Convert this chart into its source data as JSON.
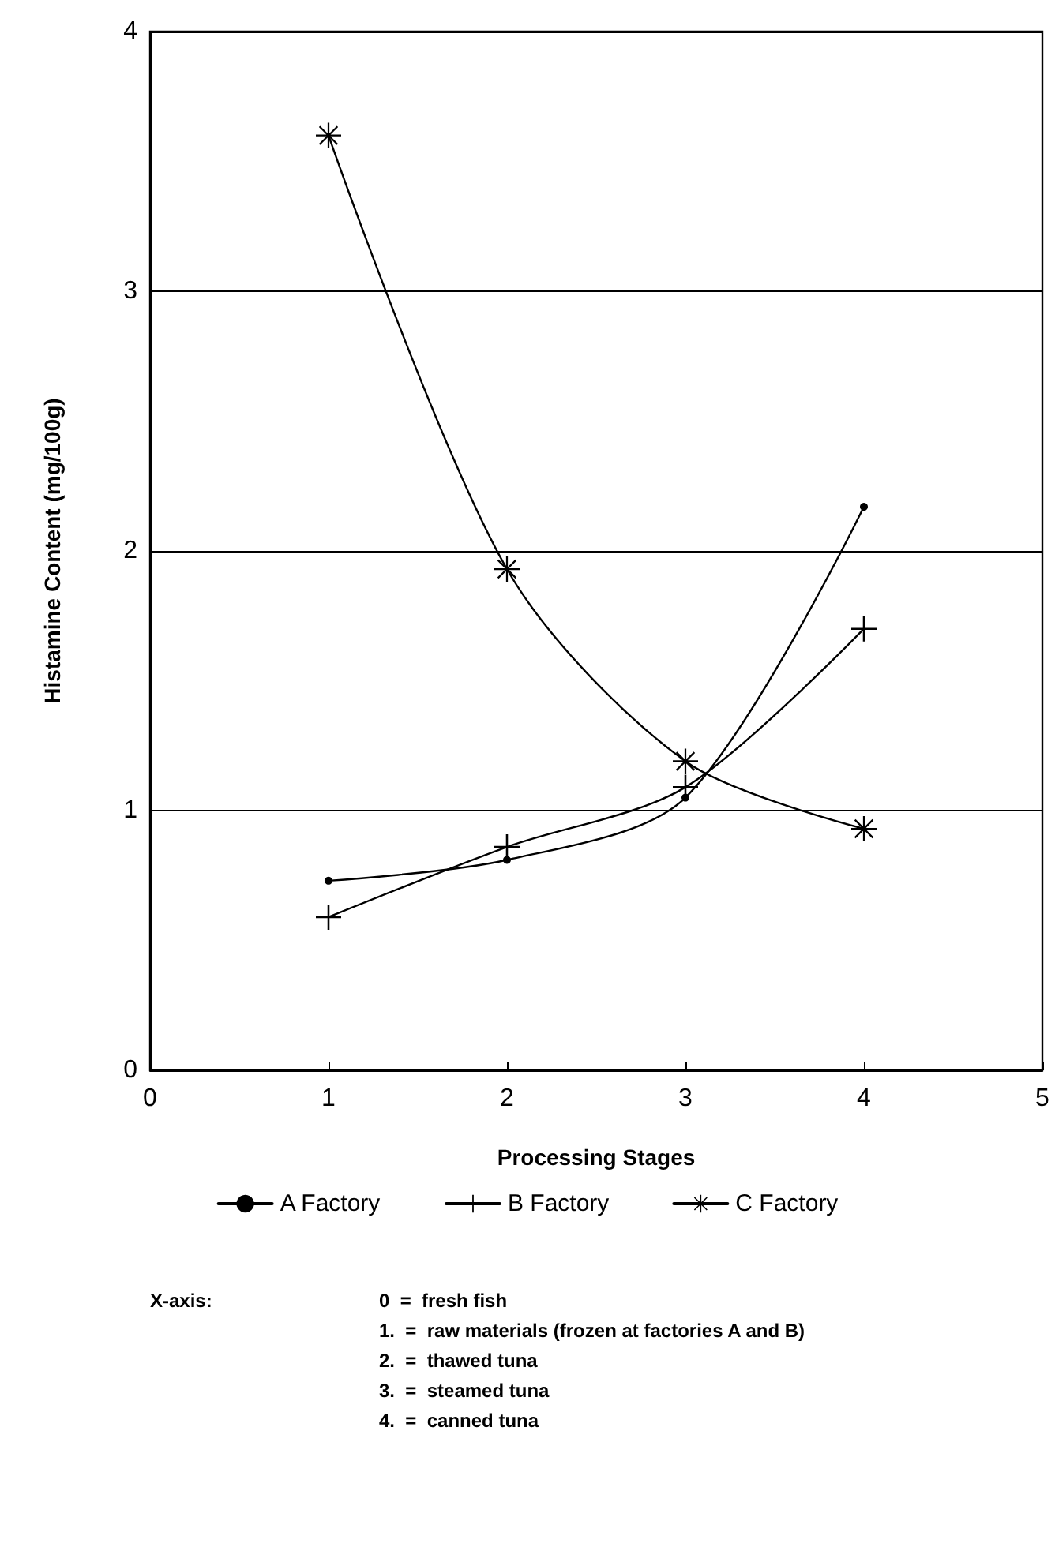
{
  "chart_data": {
    "type": "line",
    "xlabel": "Processing Stages",
    "ylabel": "Histamine Content (mg/100g)",
    "x": [
      1,
      2,
      3,
      4
    ],
    "series": [
      {
        "name": "A Factory",
        "color": "#000000",
        "marker": "circle",
        "values": [
          0.73,
          0.81,
          1.05,
          2.17
        ]
      },
      {
        "name": "B Factory",
        "color": "#000000",
        "marker": "cross",
        "values": [
          0.59,
          0.86,
          1.09,
          1.7
        ]
      },
      {
        "name": "C Factory",
        "color": "#000000",
        "marker": "star",
        "values": [
          3.6,
          1.93,
          1.19,
          0.93
        ]
      }
    ],
    "xlim": [
      0,
      5
    ],
    "xticks": [
      0,
      1,
      2,
      3,
      4,
      5
    ],
    "ylim": [
      0,
      4
    ],
    "yticks": [
      0,
      1,
      2,
      3,
      4
    ],
    "grid": "y",
    "legend": "bottom",
    "line_style": "solid",
    "annotations": [
      "X-axis:",
      "0  =  fresh fish",
      "1.  =  raw materials (frozen at factories A and B)",
      "2.  =  thawed tuna",
      "3.  =  steamed tuna",
      "4.  =  canned tuna"
    ]
  }
}
